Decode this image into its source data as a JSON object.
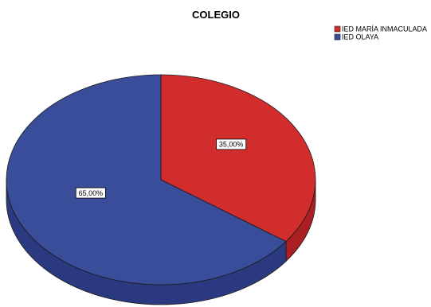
{
  "chart_data": {
    "type": "pie",
    "title": "COLEGIO",
    "categories": [
      "IED MARÍA INMACULADA",
      "IED OLAYA"
    ],
    "values": [
      35.0,
      65.0
    ],
    "data_labels": [
      "35,00%",
      "65,00%"
    ],
    "colors": [
      "#d22d2d",
      "#3a4d9b"
    ],
    "side_colors": [
      "#a91f23",
      "#2b3a80"
    ],
    "legend_position": "top-right",
    "style": "3d"
  }
}
